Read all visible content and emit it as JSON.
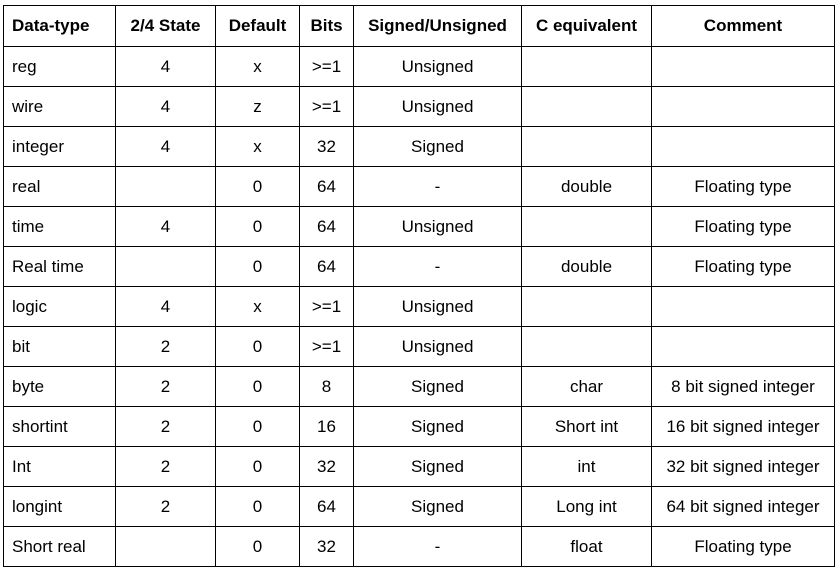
{
  "table": {
    "headers": [
      "Data-type",
      "2/4 State",
      "Default",
      "Bits",
      "Signed/Unsigned",
      "C equivalent",
      "Comment"
    ],
    "rows": [
      [
        "reg",
        "4",
        "x",
        ">=1",
        "Unsigned",
        "",
        ""
      ],
      [
        "wire",
        "4",
        "z",
        ">=1",
        "Unsigned",
        "",
        ""
      ],
      [
        "integer",
        "4",
        "x",
        "32",
        "Signed",
        "",
        ""
      ],
      [
        "real",
        "",
        "0",
        "64",
        "-",
        "double",
        "Floating type"
      ],
      [
        "time",
        "4",
        "0",
        "64",
        "Unsigned",
        "",
        "Floating type"
      ],
      [
        "Real time",
        "",
        "0",
        "64",
        "-",
        "double",
        "Floating type"
      ],
      [
        "logic",
        "4",
        "x",
        ">=1",
        "Unsigned",
        "",
        ""
      ],
      [
        "bit",
        "2",
        "0",
        ">=1",
        "Unsigned",
        "",
        ""
      ],
      [
        "byte",
        "2",
        "0",
        "8",
        "Signed",
        "char",
        "8 bit signed integer"
      ],
      [
        "shortint",
        "2",
        "0",
        "16",
        "Signed",
        "Short int",
        "16 bit signed integer"
      ],
      [
        "Int",
        "2",
        "0",
        "32",
        "Signed",
        "int",
        "32 bit signed integer"
      ],
      [
        "longint",
        "2",
        "0",
        "64",
        "Signed",
        "Long int",
        "64 bit signed integer"
      ],
      [
        "Short real",
        "",
        "0",
        "32",
        "-",
        "float",
        "Floating type"
      ]
    ]
  }
}
